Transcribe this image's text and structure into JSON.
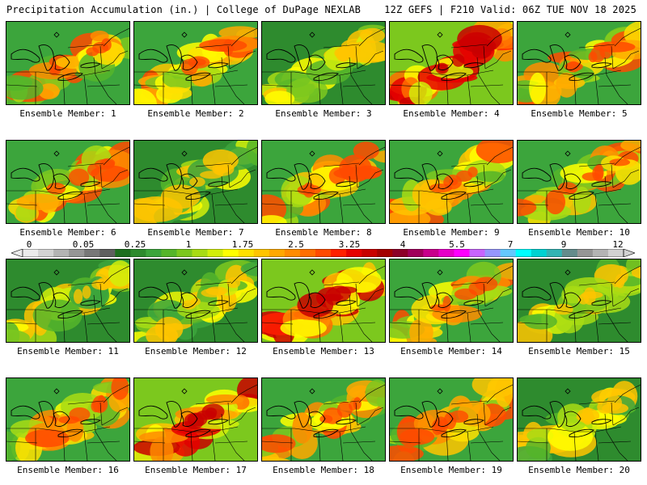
{
  "header": {
    "title_left": "Precipitation Accumulation (in.) | College of DuPage NEXLAB",
    "title_right": "12Z GEFS | F210 Valid: 06Z TUE NOV 18 2025"
  },
  "panels": [
    {
      "label": "Ensemble Member: 1",
      "palette": "mid"
    },
    {
      "label": "Ensemble Member: 2",
      "palette": "mid"
    },
    {
      "label": "Ensemble Member: 3",
      "palette": "dry"
    },
    {
      "label": "Ensemble Member: 4",
      "palette": "wet"
    },
    {
      "label": "Ensemble Member: 5",
      "palette": "mid"
    },
    {
      "label": "Ensemble Member: 6",
      "palette": "mid"
    },
    {
      "label": "Ensemble Member: 7",
      "palette": "dry"
    },
    {
      "label": "Ensemble Member: 8",
      "palette": "mid"
    },
    {
      "label": "Ensemble Member: 9",
      "palette": "mid"
    },
    {
      "label": "Ensemble Member: 10",
      "palette": "mid"
    },
    {
      "label": "Ensemble Member: 11",
      "palette": "dry"
    },
    {
      "label": "Ensemble Member: 12",
      "palette": "dry"
    },
    {
      "label": "Ensemble Member: 13",
      "palette": "wet"
    },
    {
      "label": "Ensemble Member: 14",
      "palette": "mid"
    },
    {
      "label": "Ensemble Member: 15",
      "palette": "dry"
    },
    {
      "label": "Ensemble Member: 16",
      "palette": "mid"
    },
    {
      "label": "Ensemble Member: 17",
      "palette": "wet"
    },
    {
      "label": "Ensemble Member: 18",
      "palette": "mid"
    },
    {
      "label": "Ensemble Member: 19",
      "palette": "mid"
    },
    {
      "label": "Ensemble Member: 20",
      "palette": "dry"
    }
  ],
  "legend": {
    "labels": [
      "0",
      "0.05",
      "0.25",
      "1",
      "1.75",
      "2.5",
      "3.25",
      "4",
      "5.5",
      "7",
      "9",
      "12"
    ],
    "colors": [
      "#ececec",
      "#d3d3d3",
      "#b4b4b4",
      "#969696",
      "#787878",
      "#5f5f5f",
      "#1e6e1e",
      "#2e8b2e",
      "#3ca53c",
      "#55b52a",
      "#7cc81e",
      "#a8dc14",
      "#d2ef0a",
      "#ffff00",
      "#ffe000",
      "#ffc400",
      "#ffa800",
      "#ff8c00",
      "#ff6e00",
      "#ff4a00",
      "#ff2000",
      "#e60000",
      "#c80000",
      "#a40000",
      "#8c0028",
      "#a0005a",
      "#c8008c",
      "#e600c8",
      "#ff00ff",
      "#c864ff",
      "#9696ff",
      "#64c8ff",
      "#00ffff",
      "#00d2d2",
      "#32b4b4",
      "#648c8c",
      "#969696",
      "#b4b4b4",
      "#d2d2d2"
    ]
  }
}
